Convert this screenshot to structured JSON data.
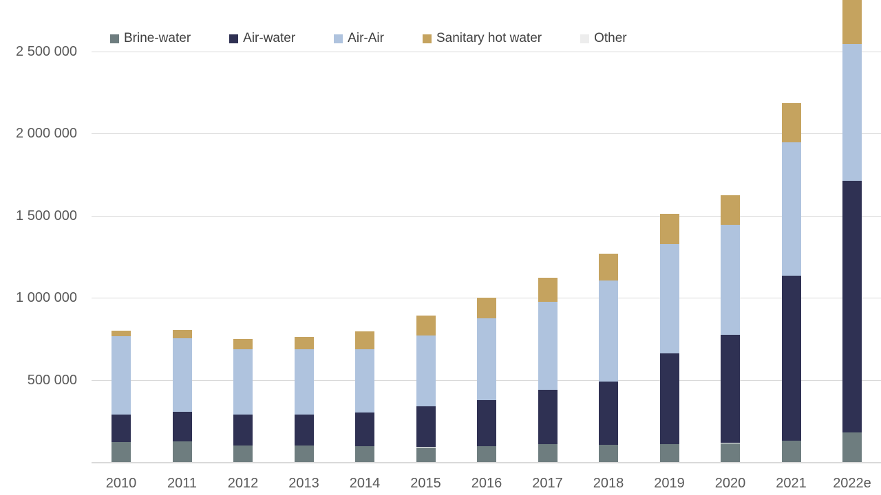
{
  "chart_data": {
    "type": "bar",
    "stacked": true,
    "title": "",
    "xlabel": "",
    "ylabel": "",
    "legend_position": "top",
    "grid": true,
    "ylim_visible": [
      0,
      2813000
    ],
    "y_tick_interval": 500000,
    "categories": [
      "2010",
      "2011",
      "2012",
      "2013",
      "2014",
      "2015",
      "2016",
      "2017",
      "2018",
      "2019",
      "2020",
      "2021",
      "2022e"
    ],
    "series": [
      {
        "name": "Brine-water",
        "color": "#6e7d7f",
        "values": [
          120000,
          125000,
          100000,
          100000,
          95000,
          90000,
          95000,
          110000,
          105000,
          110000,
          115000,
          130000,
          180000
        ]
      },
      {
        "name": "Air-water",
        "color": "#2f3153",
        "values": [
          170000,
          180000,
          190000,
          190000,
          205000,
          250000,
          280000,
          330000,
          385000,
          550000,
          660000,
          1005000,
          1530000
        ]
      },
      {
        "name": "Air-Air",
        "color": "#afc3de",
        "values": [
          475000,
          450000,
          395000,
          395000,
          385000,
          430000,
          500000,
          535000,
          615000,
          665000,
          670000,
          810000,
          835000
        ]
      },
      {
        "name": "Sanitary hot water",
        "color": "#c5a35f",
        "values": [
          35000,
          50000,
          65000,
          75000,
          110000,
          120000,
          125000,
          145000,
          165000,
          185000,
          180000,
          240000,
          450000
        ]
      },
      {
        "name": "Other",
        "color": "#ededed",
        "values": [
          0,
          0,
          0,
          0,
          0,
          0,
          0,
          0,
          0,
          0,
          0,
          0,
          0
        ]
      }
    ],
    "y_ticks": [
      {
        "value": 500000,
        "label": "500 000"
      },
      {
        "value": 1000000,
        "label": "1 000 000"
      },
      {
        "value": 1500000,
        "label": "1 500 000"
      },
      {
        "value": 2000000,
        "label": "2 000 000"
      },
      {
        "value": 2500000,
        "label": "2 500 000"
      }
    ]
  },
  "colors": {
    "background": "#ffffff",
    "gridline": "#d9d9d9",
    "axis_label": "#595959",
    "legend_text": "#404040"
  }
}
